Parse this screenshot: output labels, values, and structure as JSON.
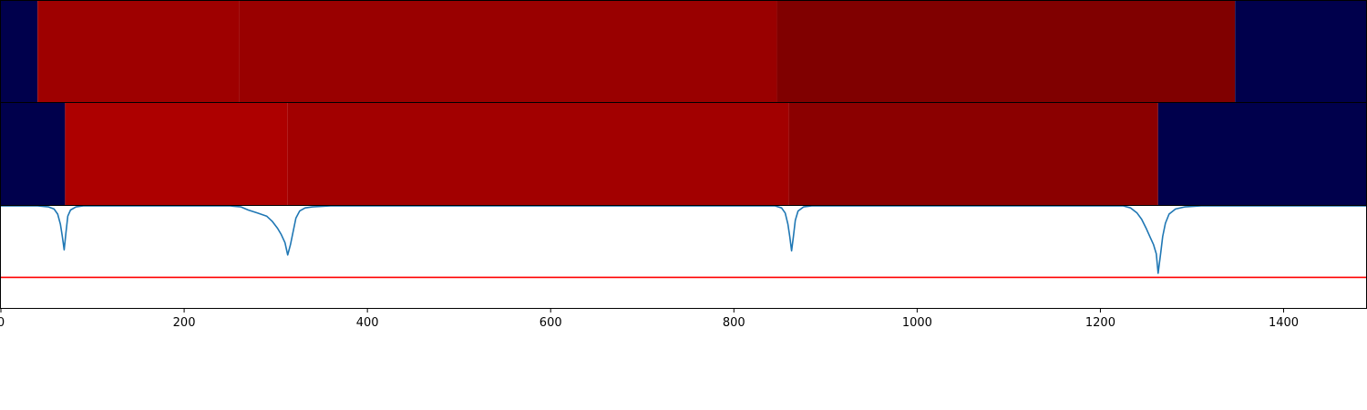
{
  "chart_data": {
    "type": "heatmap",
    "title": "",
    "xlabel": "",
    "ylabel": "",
    "xlim": [
      0,
      1490
    ],
    "ticks": [
      0,
      200,
      400,
      600,
      800,
      1000,
      1200,
      1400
    ],
    "tick_labels": [
      "0",
      "200",
      "400",
      "600",
      "800",
      "1000",
      "1200",
      "1400"
    ],
    "grid": false,
    "legend": "none",
    "tracks": [
      {
        "segments": [
          {
            "start": 0,
            "end": 40,
            "color": "#00004c"
          },
          {
            "start": 40,
            "end": 260,
            "color": "#9e0000"
          },
          {
            "start": 260,
            "end": 847,
            "color": "#990000"
          },
          {
            "start": 847,
            "end": 1347,
            "color": "#800000"
          },
          {
            "start": 1347,
            "end": 1490,
            "color": "#00004c"
          }
        ]
      },
      {
        "segments": [
          {
            "start": 0,
            "end": 70,
            "color": "#00004c"
          },
          {
            "start": 70,
            "end": 313,
            "color": "#ad0000"
          },
          {
            "start": 313,
            "end": 860,
            "color": "#a20000"
          },
          {
            "start": 860,
            "end": 1263,
            "color": "#8b0000"
          },
          {
            "start": 1263,
            "end": 1490,
            "color": "#00004c"
          }
        ]
      }
    ],
    "signal": {
      "color": "#1f77b4",
      "ylim": [
        -1,
        0
      ],
      "points": [
        [
          0,
          0
        ],
        [
          40,
          0
        ],
        [
          52,
          -0.01
        ],
        [
          58,
          -0.03
        ],
        [
          62,
          -0.08
        ],
        [
          65,
          -0.18
        ],
        [
          67,
          -0.3
        ],
        [
          69,
          -0.43
        ],
        [
          71,
          -0.26
        ],
        [
          73,
          -0.1
        ],
        [
          76,
          -0.04
        ],
        [
          82,
          -0.01
        ],
        [
          90,
          0
        ],
        [
          250,
          0
        ],
        [
          262,
          -0.01
        ],
        [
          270,
          -0.04
        ],
        [
          280,
          -0.07
        ],
        [
          290,
          -0.1
        ],
        [
          296,
          -0.15
        ],
        [
          302,
          -0.22
        ],
        [
          306,
          -0.28
        ],
        [
          310,
          -0.36
        ],
        [
          313,
          -0.48
        ],
        [
          316,
          -0.38
        ],
        [
          319,
          -0.25
        ],
        [
          322,
          -0.12
        ],
        [
          326,
          -0.05
        ],
        [
          332,
          -0.02
        ],
        [
          340,
          -0.01
        ],
        [
          360,
          0
        ],
        [
          845,
          0
        ],
        [
          852,
          -0.02
        ],
        [
          856,
          -0.07
        ],
        [
          859,
          -0.18
        ],
        [
          861,
          -0.3
        ],
        [
          863,
          -0.44
        ],
        [
          865,
          -0.3
        ],
        [
          867,
          -0.14
        ],
        [
          870,
          -0.05
        ],
        [
          876,
          -0.01
        ],
        [
          885,
          0
        ],
        [
          1225,
          0
        ],
        [
          1233,
          -0.02
        ],
        [
          1240,
          -0.07
        ],
        [
          1245,
          -0.13
        ],
        [
          1250,
          -0.22
        ],
        [
          1254,
          -0.3
        ],
        [
          1258,
          -0.38
        ],
        [
          1261,
          -0.47
        ],
        [
          1263,
          -0.66
        ],
        [
          1266,
          -0.45
        ],
        [
          1268,
          -0.3
        ],
        [
          1271,
          -0.17
        ],
        [
          1275,
          -0.08
        ],
        [
          1282,
          -0.03
        ],
        [
          1292,
          -0.01
        ],
        [
          1310,
          0
        ],
        [
          1490,
          0
        ]
      ],
      "threshold": -0.7,
      "threshold_color": "#ff0000"
    }
  }
}
